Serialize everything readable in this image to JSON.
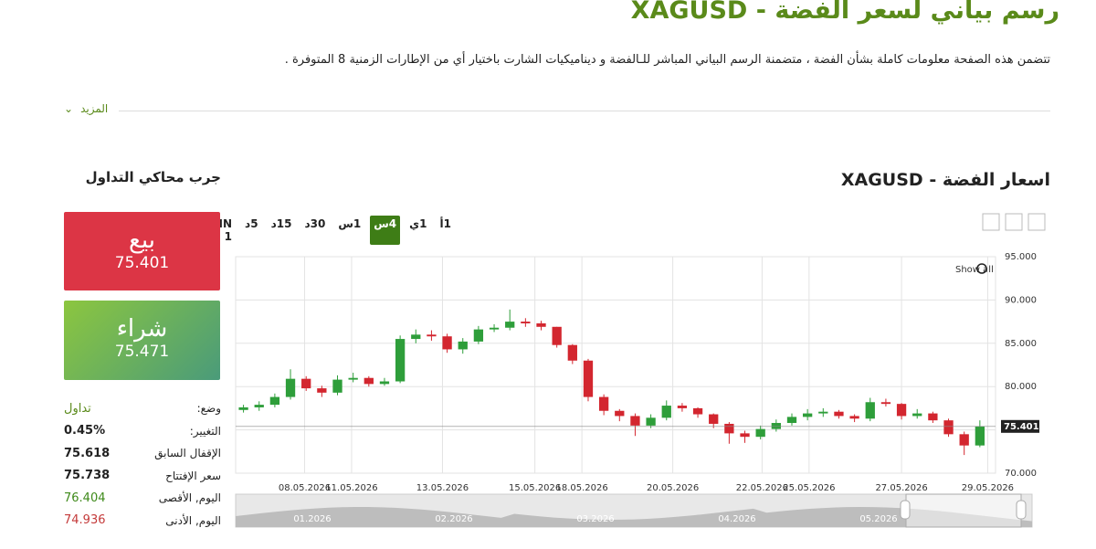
{
  "header": {
    "title": "رسم بياني لسعر الفضة - XAGUSD",
    "description": "تتضمن هذه الصفحة معلومات كاملة بشأن الفضة ، متضمنة الرسم البياني المباشر للـالفضة و ديناميكيات الشارت باختيار أي من الإطارات الزمنية 8 المتوفرة .",
    "more": "المزيد"
  },
  "chart_data": {
    "type": "candlestick",
    "title": "اسعار الفضة - XAGUSD",
    "timeframes": [
      "1أ",
      "1ي",
      "4س",
      "1س",
      "30د",
      "15د",
      "5د",
      "MIN 1"
    ],
    "active_timeframe": 2,
    "zoom_label": "Show all",
    "open": [
      77.3,
      77.6,
      77.9,
      78.8,
      80.9,
      79.8,
      79.3,
      80.8,
      81.0,
      80.3,
      80.6,
      85.5,
      86.0,
      85.8,
      84.3,
      85.2,
      86.6,
      86.8,
      87.5,
      87.3,
      86.9,
      84.8,
      83.0,
      78.8,
      77.2,
      76.6,
      75.5,
      76.4,
      77.8,
      77.5,
      76.8,
      75.7,
      74.6,
      74.2,
      75.1,
      75.8,
      76.5,
      76.9,
      77.1,
      76.6,
      76.3,
      78.2,
      78.0,
      76.6,
      76.9,
      76.1,
      74.5,
      73.2
    ],
    "high": [
      77.9,
      78.3,
      79.2,
      82.0,
      81.2,
      80.1,
      81.3,
      81.6,
      81.2,
      81.0,
      85.9,
      86.6,
      86.5,
      86.1,
      85.6,
      87.0,
      87.2,
      88.9,
      87.9,
      87.6,
      86.9,
      84.9,
      83.2,
      79.1,
      77.4,
      76.9,
      76.8,
      78.4,
      78.1,
      77.6,
      76.9,
      75.9,
      74.9,
      75.5,
      76.2,
      76.9,
      77.4,
      77.5,
      77.3,
      76.8,
      78.7,
      78.6,
      78.1,
      77.4,
      77.1,
      76.3,
      74.8,
      76.1
    ],
    "low": [
      77.0,
      77.2,
      77.6,
      78.5,
      79.5,
      78.8,
      79.0,
      80.5,
      80.0,
      80.1,
      80.4,
      85.0,
      85.3,
      83.9,
      83.8,
      84.9,
      86.3,
      86.5,
      86.9,
      86.5,
      84.5,
      82.6,
      78.3,
      76.7,
      76.0,
      74.3,
      75.2,
      76.1,
      77.1,
      76.4,
      75.2,
      73.4,
      73.5,
      73.9,
      74.8,
      75.5,
      76.1,
      76.5,
      76.3,
      75.9,
      76.0,
      77.7,
      76.2,
      76.3,
      75.8,
      74.2,
      72.1,
      73.0
    ],
    "close": [
      77.6,
      77.9,
      78.8,
      80.9,
      79.8,
      79.3,
      80.8,
      81.0,
      80.3,
      80.6,
      85.5,
      86.0,
      85.8,
      84.3,
      85.2,
      86.6,
      86.8,
      87.5,
      87.3,
      86.9,
      84.8,
      83.0,
      78.8,
      77.2,
      76.6,
      75.5,
      76.4,
      77.8,
      77.5,
      76.8,
      75.7,
      74.6,
      74.2,
      75.1,
      75.8,
      76.5,
      76.9,
      77.1,
      76.6,
      76.3,
      78.2,
      78.0,
      76.6,
      76.9,
      76.1,
      74.5,
      73.2,
      75.4
    ],
    "up_color": "#2e9e3a",
    "down_color": "#d3262f",
    "xlim": [
      -0.5,
      48
    ],
    "xticks": [
      {
        "value": 3.9,
        "label": "08.05.2026"
      },
      {
        "value": 6.9,
        "label": "11.05.2026"
      },
      {
        "value": 12.7,
        "label": "13.05.2026"
      },
      {
        "value": 18.6,
        "label": "15.05.2026"
      },
      {
        "value": 21.6,
        "label": "18.05.2026"
      },
      {
        "value": 27.4,
        "label": "20.05.2026"
      },
      {
        "value": 33.1,
        "label": "22.05.2026"
      },
      {
        "value": 36.1,
        "label": "25.05.2026"
      },
      {
        "value": 42.0,
        "label": "27.05.2026"
      },
      {
        "value": 47.5,
        "label": "29.05.2026"
      }
    ],
    "ylim": [
      70,
      95
    ],
    "yticks": [
      {
        "value": 70,
        "label": "70.000"
      },
      {
        "value": 75,
        "label": "75.000"
      },
      {
        "value": 80,
        "label": "80.000"
      },
      {
        "value": 85,
        "label": "85.000"
      },
      {
        "value": 90,
        "label": "90.000"
      },
      {
        "value": 95,
        "label": "95.000"
      }
    ],
    "grid": true,
    "last_price": 75.401,
    "navigator_labels": [
      "01.2026",
      "02.2026",
      "03.2026",
      "04.2026",
      "05.2026"
    ]
  },
  "simulator": {
    "title": "جرب محاكي التداول",
    "sell": {
      "label": "بيع",
      "price": 75.401
    },
    "buy": {
      "label": "شراء",
      "price": 75.471
    },
    "stats": [
      {
        "label": "وضع:",
        "value": "تداول"
      },
      {
        "label": "التغيير:",
        "value": "0.45%"
      },
      {
        "label": "الإقفال السابق",
        "value": 75.618
      },
      {
        "label": "سعر الإفتتاح",
        "value": 75.738
      },
      {
        "label": "اليوم, الأقصى",
        "value": 76.404
      },
      {
        "label": "اليوم, الأدنى",
        "value": 74.936
      }
    ]
  }
}
